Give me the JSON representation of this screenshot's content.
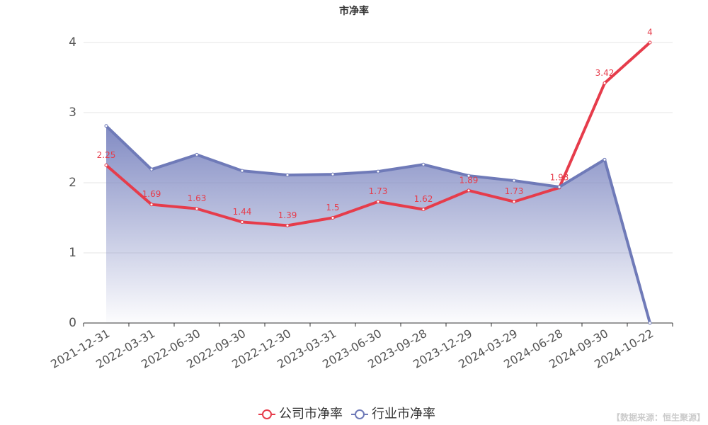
{
  "chart_data": {
    "type": "line",
    "title": "市净率",
    "categories": [
      "2021-12-31",
      "2022-03-31",
      "2022-06-30",
      "2022-09-30",
      "2022-12-30",
      "2023-03-31",
      "2023-06-30",
      "2023-09-28",
      "2023-12-29",
      "2024-03-29",
      "2024-06-28",
      "2024-09-30",
      "2024-10-22"
    ],
    "series": [
      {
        "name": "公司市净率",
        "color": "#e63c4b",
        "labels": true,
        "area": false,
        "values": [
          2.25,
          1.69,
          1.63,
          1.44,
          1.39,
          1.5,
          1.73,
          1.62,
          1.89,
          1.73,
          1.93,
          3.42,
          4
        ]
      },
      {
        "name": "行业市净率",
        "color": "#6f7ab8",
        "labels": false,
        "area": true,
        "values": [
          2.81,
          2.19,
          2.4,
          2.17,
          2.11,
          2.12,
          2.16,
          2.26,
          2.1,
          2.03,
          1.94,
          2.33,
          0
        ]
      }
    ],
    "ylim": [
      0,
      4
    ],
    "yticks": [
      0,
      1,
      2,
      3,
      4
    ],
    "grid": true,
    "legend": "bottom",
    "source": "【数据来源：恒生聚源】"
  }
}
